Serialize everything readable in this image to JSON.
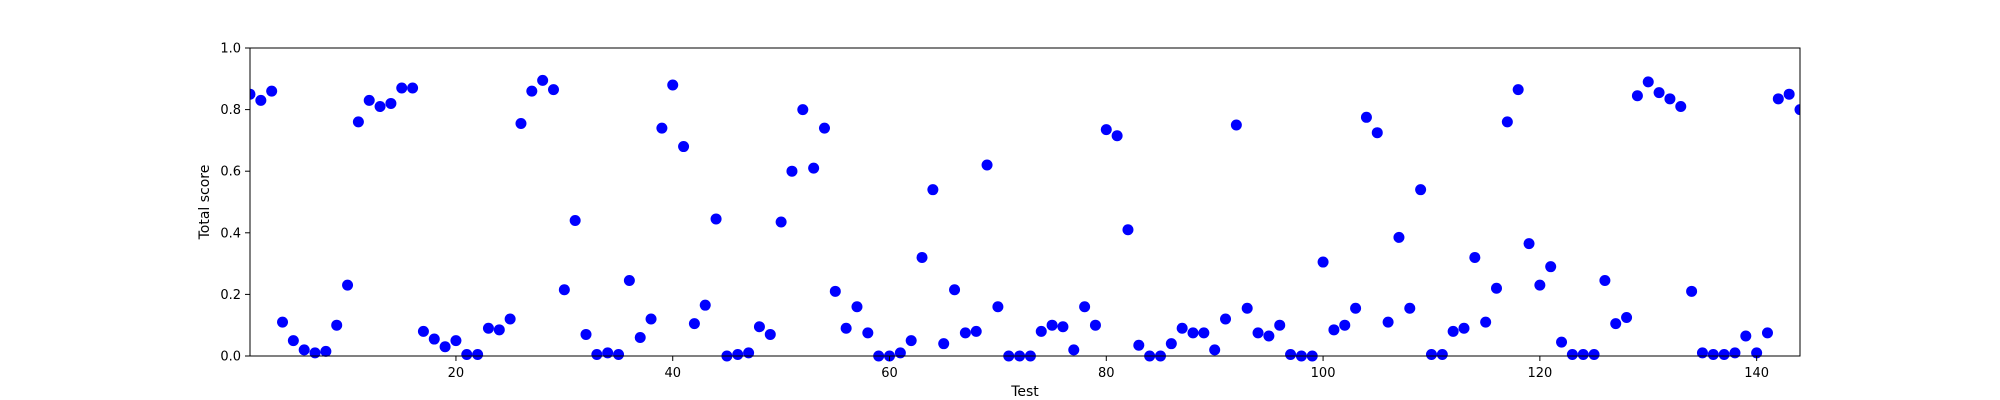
{
  "chart_data": {
    "type": "scatter",
    "title": "",
    "xlabel": "Test",
    "ylabel": "Total score",
    "xlim": [
      1,
      144
    ],
    "ylim": [
      0,
      1
    ],
    "xticks": [
      20,
      40,
      60,
      80,
      100,
      120,
      140
    ],
    "yticks": [
      0.0,
      0.2,
      0.4,
      0.6,
      0.8,
      1.0
    ],
    "ytick_labels": [
      "0.0",
      "0.2",
      "0.4",
      "0.6",
      "0.8",
      "1.0"
    ],
    "grid": false,
    "marker_color": "#0000ff",
    "series": [
      {
        "x": [
          1,
          2,
          3,
          4,
          5,
          6,
          7,
          8,
          9,
          10,
          11,
          12,
          13,
          14,
          15,
          16,
          17,
          18,
          19,
          20,
          21,
          22,
          23,
          24,
          25,
          26,
          27,
          28,
          29,
          30,
          31,
          32,
          33,
          34,
          35,
          36,
          37,
          38,
          39,
          40,
          41,
          42,
          43,
          44,
          45,
          46,
          47,
          48,
          49,
          50,
          51,
          52,
          53,
          54,
          55,
          56,
          57,
          58,
          59,
          60,
          61,
          62,
          63,
          64,
          65,
          66,
          67,
          68,
          69,
          70,
          71,
          72,
          73,
          74,
          75,
          76,
          77,
          78,
          79,
          80,
          81,
          82,
          83,
          84,
          85,
          86,
          87,
          88,
          89,
          90,
          91,
          92,
          93,
          94,
          95,
          96,
          97,
          98,
          99,
          100,
          101,
          102,
          103,
          104,
          105,
          106,
          107,
          108,
          109,
          110,
          111,
          112,
          113,
          114,
          115,
          116,
          117,
          118,
          119,
          120,
          121,
          122,
          123,
          124,
          125,
          126,
          127,
          128,
          129,
          130,
          131,
          132,
          133,
          134,
          135,
          136,
          137,
          138,
          139,
          140,
          141,
          142,
          143,
          144
        ],
        "y": [
          0.85,
          0.83,
          0.86,
          0.11,
          0.05,
          0.02,
          0.01,
          0.015,
          0.1,
          0.23,
          0.76,
          0.83,
          0.81,
          0.82,
          0.87,
          0.87,
          0.08,
          0.055,
          0.03,
          0.05,
          0.005,
          0.005,
          0.09,
          0.085,
          0.12,
          0.755,
          0.86,
          0.895,
          0.865,
          0.215,
          0.44,
          0.07,
          0.005,
          0.01,
          0.005,
          0.245,
          0.06,
          0.12,
          0.74,
          0.88,
          0.68,
          0.105,
          0.165,
          0.445,
          0.0,
          0.005,
          0.01,
          0.095,
          0.07,
          0.435,
          0.6,
          0.8,
          0.61,
          0.74,
          0.21,
          0.09,
          0.16,
          0.075,
          0.0,
          0.0,
          0.01,
          0.05,
          0.32,
          0.54,
          0.04,
          0.215,
          0.075,
          0.08,
          0.62,
          0.16,
          0.0,
          0.0,
          0.0,
          0.08,
          0.1,
          0.095,
          0.02,
          0.16,
          0.1,
          0.735,
          0.715,
          0.41,
          0.035,
          0.0,
          0.0,
          0.04,
          0.09,
          0.075,
          0.075,
          0.02,
          0.12,
          0.75,
          0.155,
          0.075,
          0.065,
          0.1,
          0.005,
          0.0,
          0.0,
          0.305,
          0.085,
          0.1,
          0.155,
          0.775,
          0.725,
          0.11,
          0.385,
          0.155,
          0.54,
          0.005,
          0.005,
          0.08,
          0.09,
          0.32,
          0.11,
          0.22,
          0.76,
          0.865,
          0.365,
          0.23,
          0.29,
          0.045,
          0.005,
          0.005,
          0.005,
          0.245,
          0.105,
          0.125,
          0.845,
          0.89,
          0.855,
          0.835,
          0.81,
          0.21,
          0.01,
          0.005,
          0.005,
          0.01,
          0.065,
          0.01,
          0.075,
          0.835,
          0.85,
          0.8
        ]
      }
    ]
  }
}
